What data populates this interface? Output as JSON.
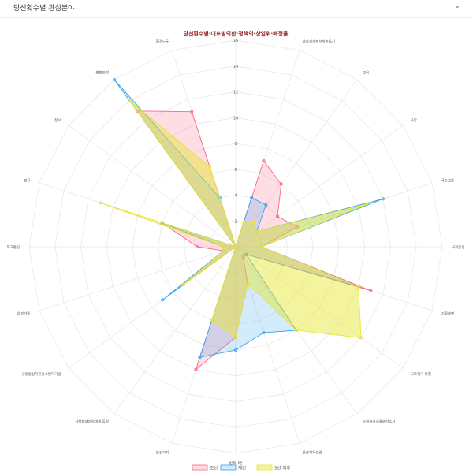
{
  "header": {
    "title": "당선횟수별 관심분야",
    "collapse_icon": "chevron-down-icon"
  },
  "chart_data": {
    "type": "radar",
    "title": "당선횟수별·대표발의한·정책의·상임위·배정율",
    "categories": [
      "",
      "과학기술정보방송통신",
      "교육",
      "국방",
      "국토교통",
      "국회운영",
      "기획재정",
      "기후위기 특별",
      "농림축산식품해양수산",
      "문화체육관광",
      "법제사법",
      "보건복지",
      "산불피해지원대책 특별",
      "산업통상자원중소벤처기업",
      "여성가족",
      "외교통일",
      "정무",
      "정보",
      "행정안전",
      "환경노동"
    ],
    "ticks": [
      2,
      4,
      6,
      8,
      10,
      12,
      14,
      16
    ],
    "rlim": [
      0,
      16
    ],
    "legend_position": "bottom",
    "series": [
      {
        "name": "초선",
        "stroke": "#ff6384",
        "fill": "rgba(255,99,132,0.22)",
        "values": [
          0,
          7,
          6,
          4,
          5,
          2,
          11,
          1,
          1,
          3,
          7,
          10,
          0,
          5,
          1,
          3,
          6,
          0,
          13,
          11
        ]
      },
      {
        "name": "재선",
        "stroke": "#36a2eb",
        "fill": "rgba(54,162,235,0.22)",
        "values": [
          0,
          4,
          4,
          2,
          12,
          2,
          10,
          1,
          8,
          7,
          8,
          9,
          0,
          7,
          1,
          1,
          6,
          0,
          16,
          4
        ]
      },
      {
        "name": "3선 이후",
        "stroke": "#e6e632",
        "fill": "rgba(230,230,40,0.45)",
        "values": [
          0,
          2,
          2.4,
          2,
          11,
          2,
          10,
          12,
          8,
          3,
          7,
          6,
          0,
          5,
          1,
          1,
          11,
          0,
          14,
          6.5
        ]
      }
    ]
  }
}
